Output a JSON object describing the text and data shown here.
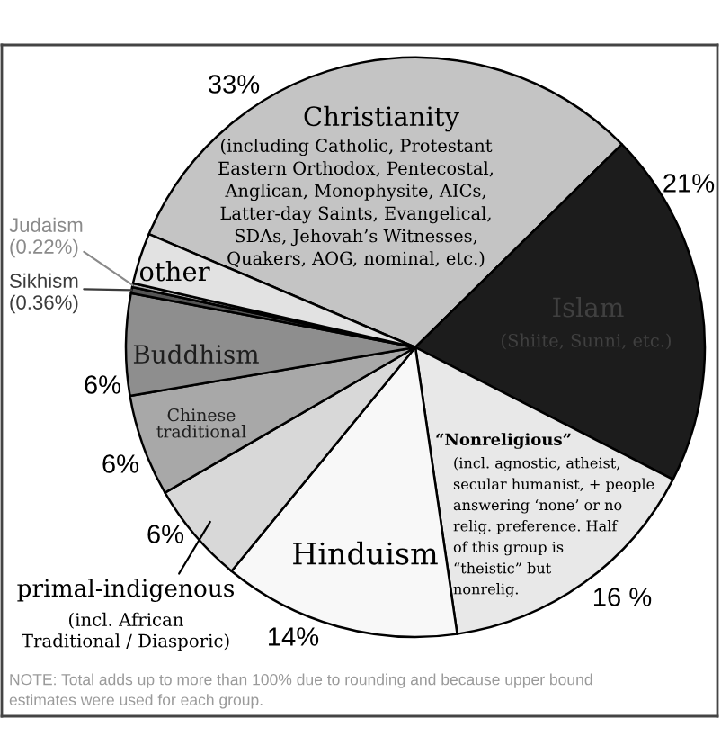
{
  "chart_data": {
    "type": "pie",
    "categories": [
      "Christianity",
      "Islam",
      "“Nonreligious”",
      "Hinduism",
      "primal-indigenous",
      "Chinese\ntraditional",
      "Buddhism",
      "Sikhism",
      "Judaism",
      "other"
    ],
    "values": [
      33,
      21,
      16,
      14,
      6,
      6,
      6,
      0.36,
      0.22,
      3
    ],
    "value_labels": [
      "33%",
      "21%",
      "16 %",
      "14%",
      "6%",
      "6%",
      "6%",
      "(0.36%)",
      "(0.22%)",
      null
    ],
    "colors": [
      "#c4c4c4",
      "#1c1c1c",
      "#e8e8e8",
      "#f8f8f8",
      "#d8d8d8",
      "#a8a8a8",
      "#8e8e8e",
      "#555555",
      "#b4b4b4",
      "#e2e2e2"
    ],
    "annotations": [
      "(including Catholic, Protestant\nEastern Orthodox, Pentecostal,\nAnglican, Monophysite, AICs,\nLatter-day Saints, Evangelical,\nSDAs, Jehovah’s Witnesses,\nQuakers, AOG, nominal, etc.)",
      "(Shiite, Sunni, etc.)",
      "(incl. agnostic, atheist,\nsecular humanist, + people\nanswering ‘none’ or no\nrelig. preference. Half\nof this group is\n“theistic” but\nnonrelig.",
      "(incl. African\nTraditional / Diasporic)",
      "NOTE: Total adds up to more than 100% due to rounding and because upper bound\nestimates were used for each group."
    ]
  }
}
